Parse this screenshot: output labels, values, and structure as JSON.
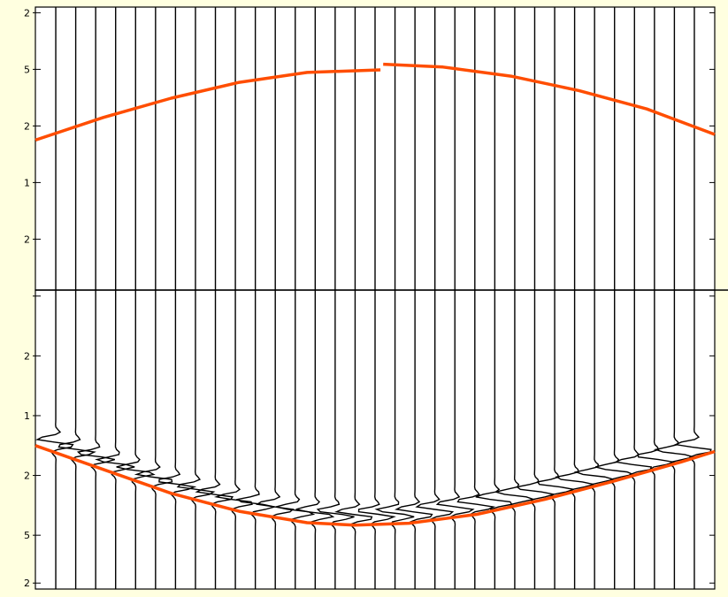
{
  "chart_data": {
    "type": "line",
    "title": "",
    "xlabel": "",
    "ylabel": "",
    "grid": false,
    "legend": "none",
    "colors": {
      "background": "#ffffe0",
      "plot_background": "#ffffff",
      "trace": "#000000",
      "pick": "#ff4d00"
    },
    "x_range": [
      0,
      100
    ],
    "y_range": [
      0,
      1
    ],
    "trace_count": 33,
    "trace_x_first": 3,
    "trace_x_last": 97,
    "upper_panel": {
      "y_range": [
        0,
        1
      ],
      "tick_labels": [
        "2",
        "5",
        "2",
        "1",
        "2"
      ],
      "tick_values": [
        0.02,
        0.22,
        0.42,
        0.62,
        0.82
      ],
      "series": [
        {
          "x": [
            0,
            10,
            20,
            30,
            40,
            50.8
          ],
          "y": [
            0.47,
            0.39,
            0.322,
            0.266,
            0.231,
            0.222
          ]
        },
        {
          "x": [
            51.2,
            60,
            70,
            80,
            90,
            100
          ],
          "y": [
            0.202,
            0.212,
            0.244,
            0.295,
            0.36,
            0.45
          ]
        }
      ]
    },
    "lower_panel": {
      "y_range": [
        0,
        1
      ],
      "tick_labels": [
        "",
        "2",
        "1",
        "2",
        "5",
        "2"
      ],
      "tick_values": [
        0.02,
        0.22,
        0.42,
        0.62,
        0.82,
        0.98
      ],
      "pick_curve": {
        "x": [
          0,
          10,
          20,
          30,
          40,
          47,
          55,
          65,
          75,
          85,
          95,
          100
        ],
        "y": [
          0.52,
          0.6,
          0.68,
          0.74,
          0.778,
          0.786,
          0.78,
          0.75,
          0.7,
          0.64,
          0.575,
          0.54
        ]
      },
      "wavelet": {
        "amplitude": 2.6,
        "y_offset": -0.035,
        "spread": 0.028
      }
    }
  }
}
